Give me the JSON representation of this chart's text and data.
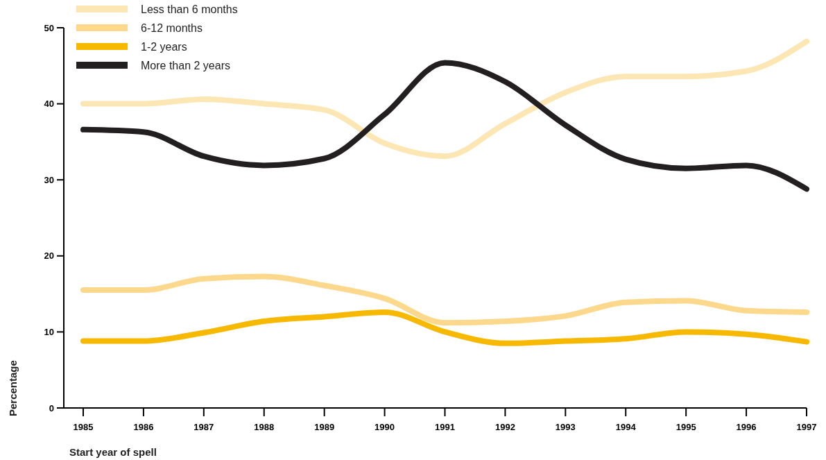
{
  "chart_data": {
    "type": "line",
    "xlabel": "Start year of spell",
    "ylabel": "Percentage",
    "categories": [
      "1985",
      "1986",
      "1987",
      "1988",
      "1989",
      "1990",
      "1991",
      "1992",
      "1993",
      "1994",
      "1995",
      "1996",
      "1997"
    ],
    "ylim": [
      0,
      50
    ],
    "yticks": [
      0,
      10,
      20,
      30,
      40,
      50
    ],
    "legend": "top left",
    "grid": false,
    "series": [
      {
        "name": "Less than 6 months",
        "color": "#fbe6b4",
        "values": [
          40.0,
          40.0,
          40.6,
          40.0,
          39.2,
          34.8,
          33.1,
          37.4,
          41.5,
          43.6,
          43.6,
          44.3,
          48.2
        ]
      },
      {
        "name": "6-12 months",
        "color": "#fbd88c",
        "values": [
          15.5,
          15.5,
          17.0,
          17.3,
          16.1,
          14.4,
          11.2,
          11.4,
          12.1,
          13.9,
          14.1,
          12.8,
          12.6
        ]
      },
      {
        "name": "1-2 years",
        "color": "#f7b800",
        "values": [
          8.8,
          8.8,
          9.9,
          11.4,
          12.0,
          12.6,
          10.0,
          8.5,
          8.8,
          9.1,
          10.0,
          9.7,
          8.7
        ]
      },
      {
        "name": "More than 2 years",
        "color": "#231f20",
        "values": [
          36.6,
          36.3,
          33.1,
          31.9,
          32.8,
          38.6,
          45.4,
          42.9,
          37.2,
          32.7,
          31.5,
          31.9,
          28.8
        ]
      }
    ]
  }
}
